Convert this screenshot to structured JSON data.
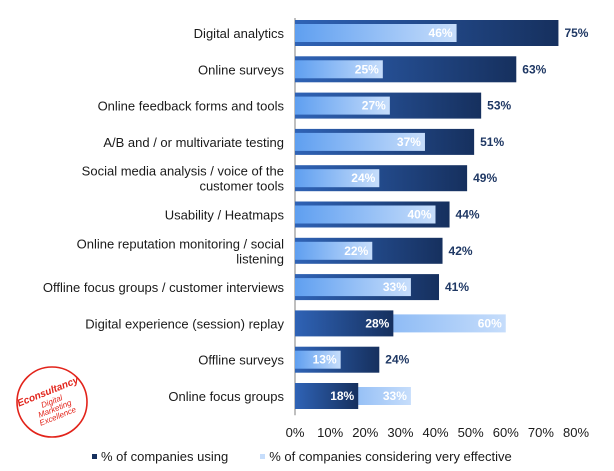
{
  "chart_data": {
    "type": "bar",
    "orientation": "horizontal",
    "categories": [
      [
        "Digital analytics"
      ],
      [
        "Online surveys"
      ],
      [
        "Online feedback forms and tools"
      ],
      [
        "A/B and / or multivariate testing"
      ],
      [
        "Social media analysis / voice of the",
        "customer tools"
      ],
      [
        "Usability / Heatmaps"
      ],
      [
        "Online reputation monitoring / social",
        "listening"
      ],
      [
        "Offline focus groups / customer interviews"
      ],
      [
        "Digital experience (session) replay"
      ],
      [
        "Offline surveys"
      ],
      [
        "Online focus groups"
      ]
    ],
    "series": [
      {
        "name": "% of companies using",
        "values": [
          75,
          63,
          53,
          51,
          49,
          44,
          42,
          41,
          28,
          24,
          18
        ]
      },
      {
        "name": "% of companies considering very effective",
        "values": [
          46,
          25,
          27,
          37,
          24,
          40,
          22,
          33,
          60,
          13,
          33
        ]
      }
    ],
    "xlim": [
      0,
      80
    ],
    "xticks": [
      "0%",
      "10%",
      "20%",
      "30%",
      "40%",
      "50%",
      "60%",
      "70%",
      "80%"
    ],
    "value_suffix": "%",
    "legend_position": "bottom",
    "colors": {
      "using_dark": "#16305e",
      "using_light": "#2f63b6",
      "effective_dark": "#5f9ff0",
      "effective_light": "#c6ddfb",
      "label_dark": "#1f3864"
    }
  },
  "logo": {
    "line1": "Econsultancy",
    "line2": "Digital",
    "line3": "Marketing",
    "line4": "Excellence",
    "color": "#e2231a"
  }
}
